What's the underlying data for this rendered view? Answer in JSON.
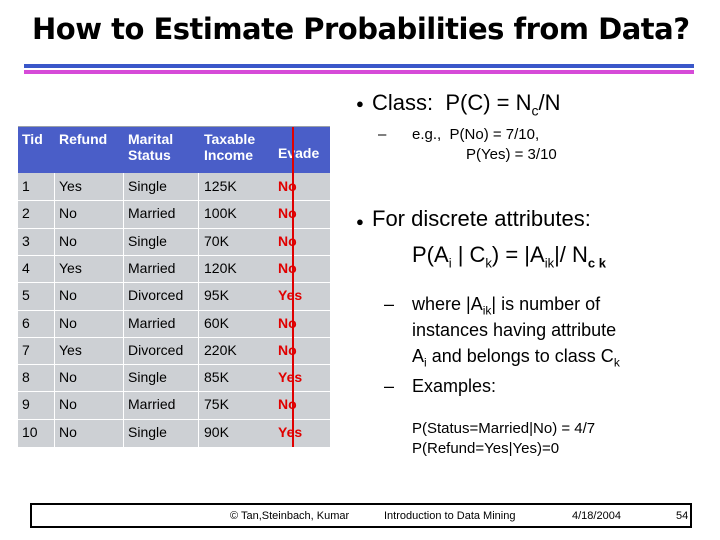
{
  "slide": {
    "title": "How to Estimate Probabilities from Data?"
  },
  "table": {
    "headers": [
      {
        "lines": [
          "Tid"
        ]
      },
      {
        "lines": [
          "Refund"
        ]
      },
      {
        "lines": [
          "Marital",
          "Status"
        ]
      },
      {
        "lines": [
          "Taxable",
          "Income"
        ]
      },
      {
        "lines": [
          "Evade"
        ]
      }
    ],
    "rows": [
      {
        "tid": "1",
        "refund": "Yes",
        "status": "Single",
        "income": "125K",
        "evade": "No"
      },
      {
        "tid": "2",
        "refund": "No",
        "status": "Married",
        "income": "100K",
        "evade": "No"
      },
      {
        "tid": "3",
        "refund": "No",
        "status": "Single",
        "income": "70K",
        "evade": "No"
      },
      {
        "tid": "4",
        "refund": "Yes",
        "status": "Married",
        "income": "120K",
        "evade": "No"
      },
      {
        "tid": "5",
        "refund": "No",
        "status": "Divorced",
        "income": "95K",
        "evade": "Yes"
      },
      {
        "tid": "6",
        "refund": "No",
        "status": "Married",
        "income": "60K",
        "evade": "No"
      },
      {
        "tid": "7",
        "refund": "Yes",
        "status": "Divorced",
        "income": "220K",
        "evade": "No"
      },
      {
        "tid": "8",
        "refund": "No",
        "status": "Single",
        "income": "85K",
        "evade": "Yes"
      },
      {
        "tid": "9",
        "refund": "No",
        "status": "Married",
        "income": "75K",
        "evade": "No"
      },
      {
        "tid": "10",
        "refund": "No",
        "status": "Single",
        "income": "90K",
        "evade": "Yes"
      }
    ]
  },
  "content": {
    "class_label": "Class:",
    "class_formula_a": "P(C) = N",
    "class_formula_sub": "c",
    "class_formula_b": "/N",
    "eg_prefix": "e.g.,",
    "eg_line1": "P(No) = 7/10,",
    "eg_line2": "P(Yes) = 3/10",
    "discrete_line1": "For discrete attributes:",
    "discrete_f1": "P(A",
    "discrete_f_sub_i": "i",
    "discrete_f2": " | C",
    "discrete_f_sub_k": "k",
    "discrete_f3": ") = |A",
    "discrete_f_sub_ik": "ik",
    "discrete_f4": "|/ N",
    "discrete_f_sub_ck": "c k",
    "where_1": "where |A",
    "where_1_sub": "ik",
    "where_1b": "| is number of",
    "where_2": "instances having attribute",
    "where_3a": "A",
    "where_3_sub_i": "i",
    "where_3b": " and belongs to class C",
    "where_3_sub_k": "k",
    "examples": "Examples:",
    "ex1": "P(Status=Married|No) = 4/7",
    "ex2": "P(Refund=Yes|Yes)=0"
  },
  "footer": {
    "authors": "© Tan,Steinbach, Kumar",
    "course": "Introduction to Data Mining",
    "date": "4/18/2004",
    "page": "54"
  },
  "colors": {
    "header_blue": "#4a5ec8",
    "table_bg": "#cdd0d4",
    "evade_red": "#e00000",
    "rule_blue": "#3a57c9",
    "rule_pink": "#d64bd8"
  }
}
